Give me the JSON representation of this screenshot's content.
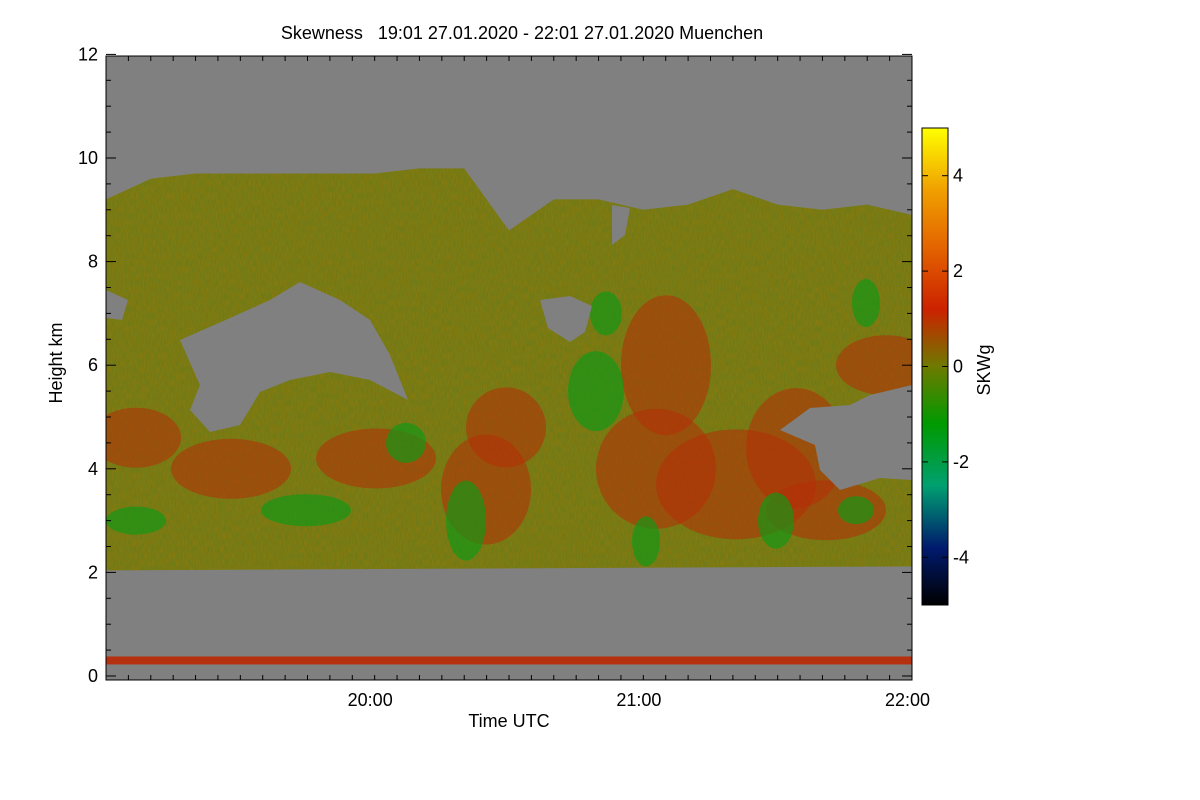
{
  "chart_data": {
    "type": "heatmap",
    "title": "Skewness   19:01 27.01.2020 - 22:01 27.01.2020 Muenchen",
    "xlabel": "Time UTC",
    "ylabel": "Height km",
    "x_range": [
      "19:01",
      "22:01"
    ],
    "x_ticks": [
      "20:00",
      "21:00",
      "22:00"
    ],
    "ylim": [
      0,
      12
    ],
    "y_ticks": [
      "0",
      "2",
      "4",
      "6",
      "8",
      "10",
      "12"
    ],
    "colorbar": {
      "label": "SKWg",
      "range": [
        -5,
        5
      ],
      "ticks": [
        "-4",
        "-2",
        "0",
        "2",
        "4"
      ],
      "colors": [
        "#000000",
        "#001a6e",
        "#00a070",
        "#009a00",
        "#6e7a00",
        "#cc2200",
        "#e36400",
        "#f0a000",
        "#ffff00"
      ]
    },
    "no_data_color": "#808080",
    "field_description": "skewness of vertical wind; cloud/aerosol layer roughly 2–9.5 km with embedded gaps, mostly near 0 to +2, green (negative) streaks",
    "layer_bottom_km": 2.0,
    "layer_top_km": [
      9.2,
      9.6,
      9.7,
      9.7,
      9.7,
      9.7,
      9.7,
      9.8,
      9.8,
      8.6,
      9.2,
      9.2,
      9.0,
      9.1,
      9.4,
      9.1,
      9.0,
      9.1,
      8.9
    ],
    "near_surface_band_km": 0.3
  }
}
